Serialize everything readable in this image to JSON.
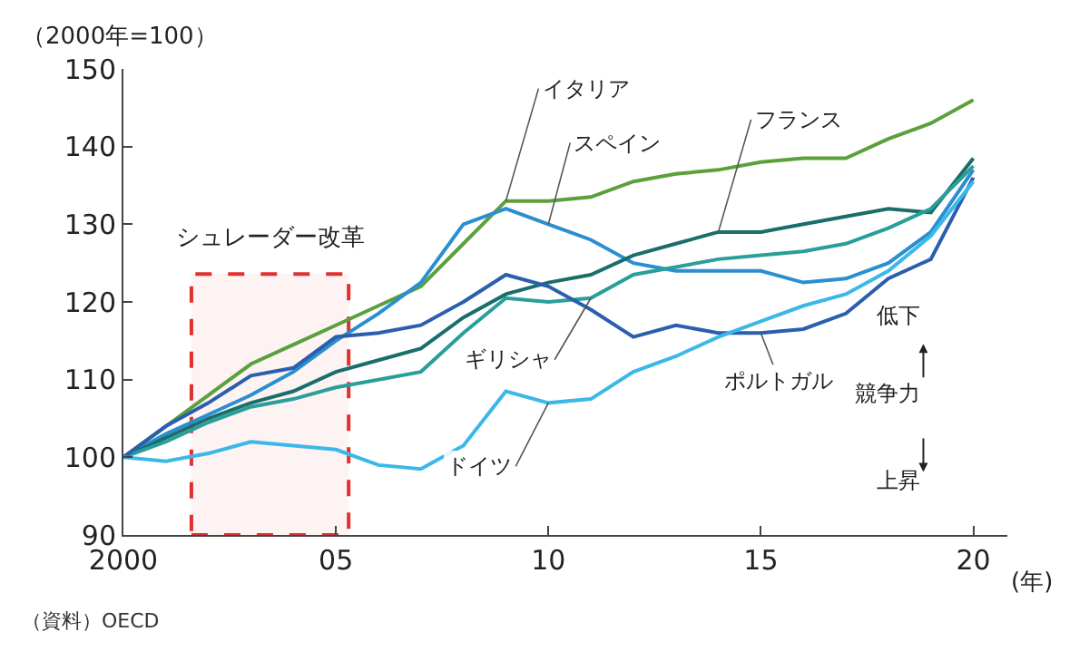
{
  "chart_data": {
    "type": "line",
    "ylabel": "（2000年=100）",
    "xlabel": "(年)",
    "x": [
      2000,
      2001,
      2002,
      2003,
      2004,
      2005,
      2006,
      2007,
      2008,
      2009,
      2010,
      2011,
      2012,
      2013,
      2014,
      2015,
      2016,
      2017,
      2018,
      2019,
      2020
    ],
    "series": [
      {
        "name": "イタリア",
        "color": "#5aa03c",
        "values": [
          100,
          104,
          108,
          112,
          114.5,
          117,
          119.5,
          122,
          127.5,
          133,
          133,
          133.5,
          135.5,
          136.5,
          137,
          138,
          138.5,
          138.5,
          141,
          143,
          146
        ]
      },
      {
        "name": "スペイン",
        "color": "#2a8fd0",
        "values": [
          100,
          103,
          105.5,
          108,
          111,
          115,
          118.5,
          122.5,
          130,
          132,
          130,
          128,
          125,
          124,
          124,
          124,
          122.5,
          123,
          125,
          129,
          137
        ]
      },
      {
        "name": "フランス",
        "color": "#1a6e6a",
        "values": [
          100,
          102.5,
          105,
          107,
          108.5,
          111,
          112.5,
          114,
          118,
          121,
          122.5,
          123.5,
          126,
          127.5,
          129,
          129,
          130,
          131,
          132,
          131.5,
          138.5
        ]
      },
      {
        "name": "ギリシャ",
        "color": "#2a9e9a",
        "values": [
          100,
          102,
          104.5,
          106.5,
          107.5,
          109,
          110,
          111,
          116,
          120.5,
          120,
          120.5,
          123.5,
          124.5,
          125.5,
          126,
          126.5,
          127.5,
          129.5,
          132,
          137.5
        ]
      },
      {
        "name": "ポルトガル",
        "color": "#2b5fad",
        "values": [
          100,
          104,
          107,
          110.5,
          111.5,
          115.5,
          116,
          117,
          120,
          123.5,
          122,
          119,
          115.5,
          117,
          116,
          116,
          116.5,
          118.5,
          123,
          125.5,
          136
        ]
      },
      {
        "name": "ドイツ",
        "color": "#3bb8e8",
        "values": [
          100,
          99.5,
          100.5,
          102,
          101.5,
          101,
          99,
          98.5,
          101.5,
          108.5,
          107,
          107.5,
          111,
          113,
          115.5,
          117.5,
          119.5,
          121,
          124,
          128.5,
          135.5
        ]
      }
    ],
    "xlim": [
      2000,
      2020.8
    ],
    "xticks": [
      {
        "value": 2000,
        "label": "2000"
      },
      {
        "value": 2005,
        "label": "05"
      },
      {
        "value": 2010,
        "label": "10"
      },
      {
        "value": 2015,
        "label": "15"
      },
      {
        "value": 2020,
        "label": "20"
      }
    ],
    "ylim": [
      90,
      150
    ],
    "yticks": [
      90,
      100,
      110,
      120,
      130,
      140,
      150
    ],
    "bands": [
      {
        "axis": "x",
        "from": 2001.6,
        "to": 2005.3,
        "label": "シュレーダー改革",
        "color": "#e03030"
      }
    ],
    "annotations": [
      "低下",
      "競争力",
      "上昇",
      "（資料）OECD"
    ],
    "grid": false,
    "legend": false,
    "marker": "none",
    "line_style": "solid"
  }
}
